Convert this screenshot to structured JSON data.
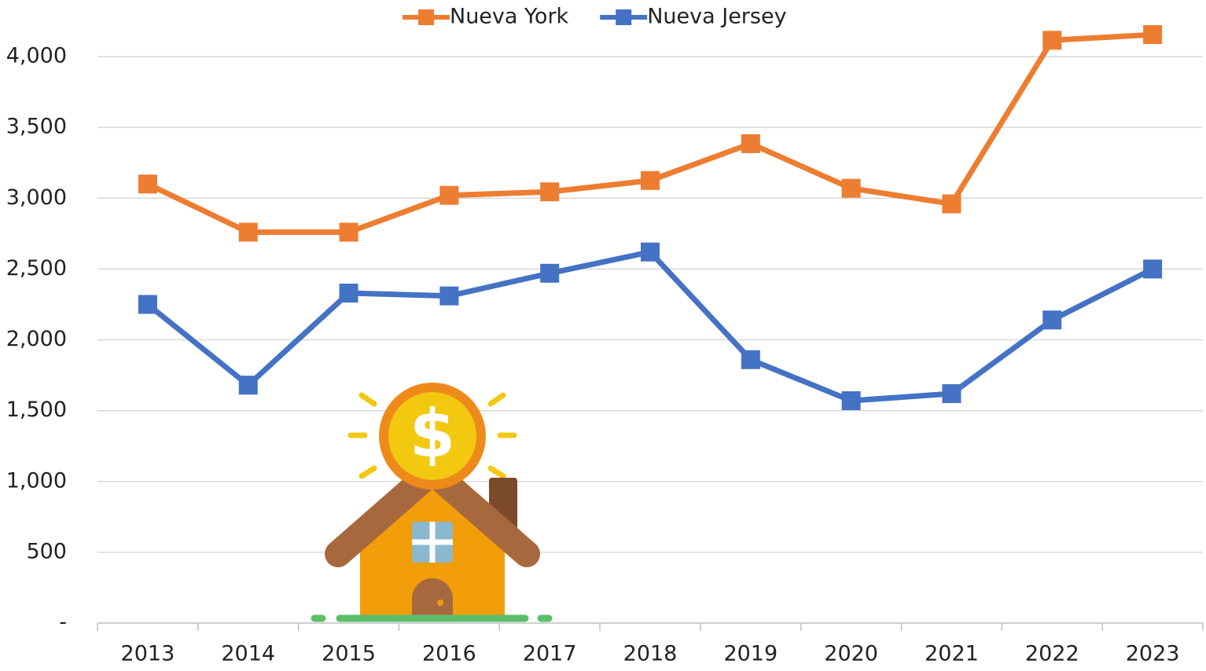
{
  "chart_data": {
    "type": "line",
    "categories": [
      "2013",
      "2014",
      "2015",
      "2016",
      "2017",
      "2018",
      "2019",
      "2020",
      "2021",
      "2022",
      "2023"
    ],
    "series": [
      {
        "name": "Nueva York",
        "color": "#ed7d31",
        "values": [
          3100,
          2760,
          2760,
          3020,
          3045,
          3125,
          3385,
          3070,
          2960,
          4115,
          4155
        ]
      },
      {
        "name": "Nueva Jersey",
        "color": "#4472c4",
        "values": [
          2250,
          1680,
          2330,
          2310,
          2470,
          2620,
          1860,
          1570,
          1620,
          2140,
          2500
        ]
      }
    ],
    "ylim": [
      0,
      4000
    ],
    "yticks": [
      {
        "value": 0,
        "label": "-"
      },
      500,
      {
        "value": 1000,
        "label": "1,000"
      },
      {
        "value": 1500,
        "label": "1,500"
      },
      {
        "value": 2000,
        "label": "2,000"
      },
      {
        "value": 2500,
        "label": "2,500"
      },
      {
        "value": 3000,
        "label": "3,000"
      },
      {
        "value": 3500,
        "label": "3,500"
      },
      {
        "value": 4000,
        "label": "4,000"
      }
    ],
    "grid": true,
    "legend": "top"
  }
}
